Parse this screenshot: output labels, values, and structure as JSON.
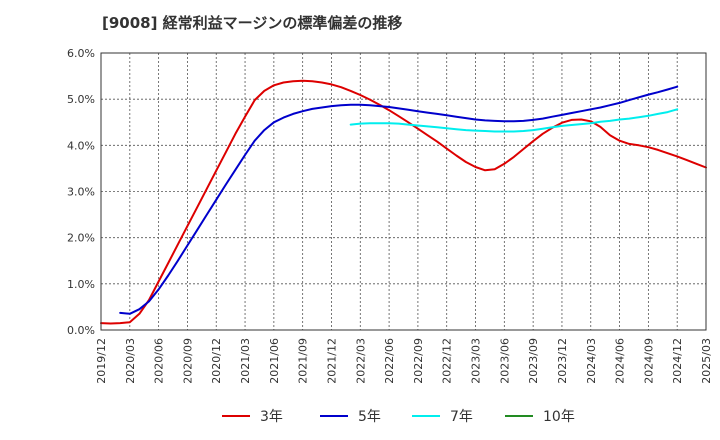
{
  "title": "[9008]  経常利益マージンの標準偏差の推移",
  "chart_data": {
    "type": "line",
    "title": "[9008]  経常利益マージンの標準偏差の推移",
    "xlabel": "",
    "ylabel": "",
    "x_ticks": [
      "2019/12",
      "2020/03",
      "2020/06",
      "2020/09",
      "2020/12",
      "2021/03",
      "2021/06",
      "2021/09",
      "2021/12",
      "2022/03",
      "2022/06",
      "2022/09",
      "2022/12",
      "2023/03",
      "2023/06",
      "2023/09",
      "2023/12",
      "2024/03",
      "2024/06",
      "2024/09",
      "2024/12",
      "2025/03"
    ],
    "y_ticks": [
      "0.0%",
      "1.0%",
      "2.0%",
      "3.0%",
      "4.0%",
      "5.0%",
      "6.0%"
    ],
    "ylim": [
      0,
      6
    ],
    "xlim": [
      "2019/12",
      "2025/03"
    ],
    "grid": true,
    "legend_position": "bottom",
    "series": [
      {
        "name": "3年",
        "color": "#dd0000",
        "points": [
          [
            "2019/12",
            0.15
          ],
          [
            "2020/01",
            0.14
          ],
          [
            "2020/02",
            0.15
          ],
          [
            "2020/03",
            0.17
          ],
          [
            "2020/04",
            0.35
          ],
          [
            "2020/05",
            0.65
          ],
          [
            "2020/06",
            1.05
          ],
          [
            "2020/07",
            1.45
          ],
          [
            "2020/08",
            1.85
          ],
          [
            "2020/09",
            2.25
          ],
          [
            "2020/10",
            2.65
          ],
          [
            "2020/11",
            3.05
          ],
          [
            "2020/12",
            3.45
          ],
          [
            "2021/01",
            3.85
          ],
          [
            "2021/02",
            4.25
          ],
          [
            "2021/03",
            4.62
          ],
          [
            "2021/04",
            4.98
          ],
          [
            "2021/05",
            5.18
          ],
          [
            "2021/06",
            5.3
          ],
          [
            "2021/07",
            5.36
          ],
          [
            "2021/08",
            5.39
          ],
          [
            "2021/09",
            5.4
          ],
          [
            "2021/10",
            5.39
          ],
          [
            "2021/11",
            5.36
          ],
          [
            "2021/12",
            5.32
          ],
          [
            "2022/01",
            5.26
          ],
          [
            "2022/02",
            5.18
          ],
          [
            "2022/03",
            5.09
          ],
          [
            "2022/04",
            4.99
          ],
          [
            "2022/05",
            4.88
          ],
          [
            "2022/06",
            4.76
          ],
          [
            "2022/07",
            4.63
          ],
          [
            "2022/08",
            4.5
          ],
          [
            "2022/09",
            4.36
          ],
          [
            "2022/10",
            4.22
          ],
          [
            "2022/11",
            4.08
          ],
          [
            "2022/12",
            3.93
          ],
          [
            "2023/01",
            3.78
          ],
          [
            "2023/02",
            3.64
          ],
          [
            "2023/03",
            3.53
          ],
          [
            "2023/04",
            3.46
          ],
          [
            "2023/05",
            3.48
          ],
          [
            "2023/06",
            3.6
          ],
          [
            "2023/07",
            3.75
          ],
          [
            "2023/08",
            3.92
          ],
          [
            "2023/09",
            4.09
          ],
          [
            "2023/10",
            4.25
          ],
          [
            "2023/11",
            4.38
          ],
          [
            "2023/12",
            4.49
          ],
          [
            "2024/01",
            4.55
          ],
          [
            "2024/02",
            4.56
          ],
          [
            "2024/03",
            4.52
          ],
          [
            "2024/04",
            4.4
          ],
          [
            "2024/05",
            4.22
          ],
          [
            "2024/06",
            4.1
          ],
          [
            "2024/07",
            4.03
          ],
          [
            "2024/08",
            4.0
          ],
          [
            "2024/09",
            3.96
          ],
          [
            "2024/10",
            3.9
          ],
          [
            "2024/11",
            3.83
          ],
          [
            "2024/12",
            3.76
          ],
          [
            "2025/01",
            3.68
          ],
          [
            "2025/02",
            3.6
          ],
          [
            "2025/03",
            3.52
          ]
        ]
      },
      {
        "name": "5年",
        "color": "#0000cc",
        "points": [
          [
            "2020/02",
            0.37
          ],
          [
            "2020/03",
            0.35
          ],
          [
            "2020/04",
            0.45
          ],
          [
            "2020/05",
            0.62
          ],
          [
            "2020/06",
            0.88
          ],
          [
            "2020/07",
            1.18
          ],
          [
            "2020/08",
            1.5
          ],
          [
            "2020/09",
            1.83
          ],
          [
            "2020/10",
            2.16
          ],
          [
            "2020/11",
            2.49
          ],
          [
            "2020/12",
            2.82
          ],
          [
            "2021/01",
            3.15
          ],
          [
            "2021/02",
            3.47
          ],
          [
            "2021/03",
            3.79
          ],
          [
            "2021/04",
            4.1
          ],
          [
            "2021/05",
            4.33
          ],
          [
            "2021/06",
            4.5
          ],
          [
            "2021/07",
            4.6
          ],
          [
            "2021/08",
            4.68
          ],
          [
            "2021/09",
            4.74
          ],
          [
            "2021/10",
            4.79
          ],
          [
            "2021/11",
            4.82
          ],
          [
            "2021/12",
            4.85
          ],
          [
            "2022/01",
            4.87
          ],
          [
            "2022/02",
            4.88
          ],
          [
            "2022/03",
            4.88
          ],
          [
            "2022/04",
            4.87
          ],
          [
            "2022/05",
            4.85
          ],
          [
            "2022/06",
            4.83
          ],
          [
            "2022/07",
            4.8
          ],
          [
            "2022/08",
            4.77
          ],
          [
            "2022/09",
            4.74
          ],
          [
            "2022/10",
            4.71
          ],
          [
            "2022/11",
            4.68
          ],
          [
            "2022/12",
            4.65
          ],
          [
            "2023/01",
            4.62
          ],
          [
            "2023/02",
            4.59
          ],
          [
            "2023/03",
            4.56
          ],
          [
            "2023/04",
            4.54
          ],
          [
            "2023/05",
            4.53
          ],
          [
            "2023/06",
            4.52
          ],
          [
            "2023/07",
            4.52
          ],
          [
            "2023/08",
            4.53
          ],
          [
            "2023/09",
            4.55
          ],
          [
            "2023/10",
            4.58
          ],
          [
            "2023/11",
            4.62
          ],
          [
            "2023/12",
            4.66
          ],
          [
            "2024/01",
            4.7
          ],
          [
            "2024/02",
            4.74
          ],
          [
            "2024/03",
            4.78
          ],
          [
            "2024/04",
            4.82
          ],
          [
            "2024/05",
            4.87
          ],
          [
            "2024/06",
            4.92
          ],
          [
            "2024/07",
            4.98
          ],
          [
            "2024/08",
            5.04
          ],
          [
            "2024/09",
            5.1
          ],
          [
            "2024/10",
            5.15
          ],
          [
            "2024/11",
            5.21
          ],
          [
            "2024/12",
            5.27
          ]
        ]
      },
      {
        "name": "7年",
        "color": "#00eeee",
        "points": [
          [
            "2022/02",
            4.45
          ],
          [
            "2022/03",
            4.47
          ],
          [
            "2022/04",
            4.48
          ],
          [
            "2022/05",
            4.48
          ],
          [
            "2022/06",
            4.48
          ],
          [
            "2022/07",
            4.47
          ],
          [
            "2022/08",
            4.45
          ],
          [
            "2022/09",
            4.43
          ],
          [
            "2022/10",
            4.41
          ],
          [
            "2022/11",
            4.39
          ],
          [
            "2022/12",
            4.37
          ],
          [
            "2023/01",
            4.35
          ],
          [
            "2023/02",
            4.33
          ],
          [
            "2023/03",
            4.32
          ],
          [
            "2023/04",
            4.31
          ],
          [
            "2023/05",
            4.3
          ],
          [
            "2023/06",
            4.3
          ],
          [
            "2023/07",
            4.3
          ],
          [
            "2023/08",
            4.31
          ],
          [
            "2023/09",
            4.33
          ],
          [
            "2023/10",
            4.36
          ],
          [
            "2023/11",
            4.39
          ],
          [
            "2023/12",
            4.42
          ],
          [
            "2024/01",
            4.44
          ],
          [
            "2024/02",
            4.46
          ],
          [
            "2024/03",
            4.48
          ],
          [
            "2024/04",
            4.51
          ],
          [
            "2024/05",
            4.53
          ],
          [
            "2024/06",
            4.56
          ],
          [
            "2024/07",
            4.58
          ],
          [
            "2024/08",
            4.61
          ],
          [
            "2024/09",
            4.64
          ],
          [
            "2024/10",
            4.68
          ],
          [
            "2024/11",
            4.72
          ],
          [
            "2024/12",
            4.78
          ]
        ]
      },
      {
        "name": "10年",
        "color": "#228b22",
        "points": []
      }
    ]
  },
  "legend": [
    {
      "label": "3年",
      "color": "#dd0000"
    },
    {
      "label": "5年",
      "color": "#0000cc"
    },
    {
      "label": "7年",
      "color": "#00eeee"
    },
    {
      "label": "10年",
      "color": "#228b22"
    }
  ]
}
